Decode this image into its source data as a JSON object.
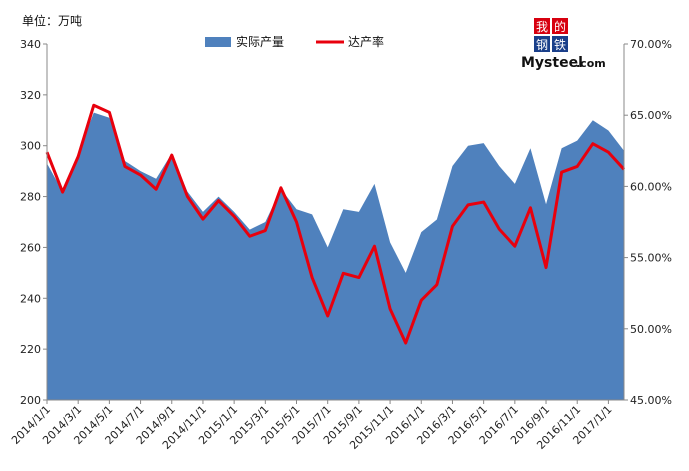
{
  "unit_label": "单位：万吨",
  "legend": {
    "area_name": "实际产量",
    "line_name": "达产率"
  },
  "logo": {
    "char1": "我",
    "char2": "的",
    "char3": "钢",
    "char4": "铁",
    "word_big": "Mysteel",
    "word_small": ".com"
  },
  "colors": {
    "area": "#4f81bd",
    "line": "#e8000d",
    "logo_red": "#d7000f",
    "logo_blue": "#1a3f8a"
  },
  "chart_data": {
    "type": "area",
    "title": "",
    "xlabel": "",
    "ylabel": "",
    "x_tick_labels": [
      "2014/1/1",
      "2014/3/1",
      "2014/5/1",
      "2014/7/1",
      "2014/9/1",
      "2014/11/1",
      "2015/1/1",
      "2015/3/1",
      "2015/5/1",
      "2015/7/1",
      "2015/9/1",
      "2015/11/1",
      "2016/1/1",
      "2016/3/1",
      "2016/5/1",
      "2016/7/1",
      "2016/9/1",
      "2016/11/1",
      "2017/1/1"
    ],
    "x": [
      "2014/1",
      "2014/2",
      "2014/3",
      "2014/4",
      "2014/5",
      "2014/6",
      "2014/7",
      "2014/8",
      "2014/9",
      "2014/10",
      "2014/11",
      "2014/12",
      "2015/1",
      "2015/2",
      "2015/3",
      "2015/4",
      "2015/5",
      "2015/6",
      "2015/7",
      "2015/8",
      "2015/9",
      "2015/10",
      "2015/11",
      "2015/12",
      "2016/1",
      "2016/2",
      "2016/3",
      "2016/4",
      "2016/5",
      "2016/6",
      "2016/7",
      "2016/8",
      "2016/9",
      "2016/10",
      "2016/11",
      "2016/12",
      "2017/1",
      "2017/2"
    ],
    "left_axis": {
      "ylim": [
        200,
        340
      ],
      "ticks": [
        200,
        220,
        240,
        260,
        280,
        300,
        320,
        340
      ]
    },
    "right_axis": {
      "ylim": [
        45,
        70
      ],
      "ticks": [
        45,
        50,
        55,
        60,
        65,
        70
      ],
      "tick_labels": [
        "45.00%",
        "50.00%",
        "55.00%",
        "60.00%",
        "65.00%",
        "70.00%"
      ]
    },
    "series": [
      {
        "name": "实际产量",
        "type": "area",
        "axis": "left",
        "values": [
          293,
          282,
          297,
          313,
          311,
          294,
          290,
          287,
          297,
          282,
          274,
          280,
          274,
          267,
          270,
          283,
          275,
          273,
          260,
          275,
          274,
          285,
          262,
          250,
          266,
          271,
          292,
          300,
          301,
          292,
          285,
          299,
          277,
          299,
          302,
          310,
          306,
          298
        ]
      },
      {
        "name": "达产率",
        "type": "line",
        "axis": "right",
        "values": [
          62.4,
          59.6,
          62.1,
          65.7,
          65.2,
          61.4,
          60.8,
          59.8,
          62.2,
          59.3,
          57.7,
          59.0,
          57.9,
          56.5,
          56.9,
          59.9,
          57.5,
          53.6,
          50.9,
          53.9,
          53.6,
          55.8,
          51.4,
          49.0,
          52.0,
          53.1,
          57.2,
          58.7,
          58.9,
          57.0,
          55.8,
          58.5,
          54.3,
          61.0,
          61.4,
          63.0,
          62.4,
          61.2
        ]
      }
    ],
    "legend_position": "top-center",
    "grid": false
  }
}
